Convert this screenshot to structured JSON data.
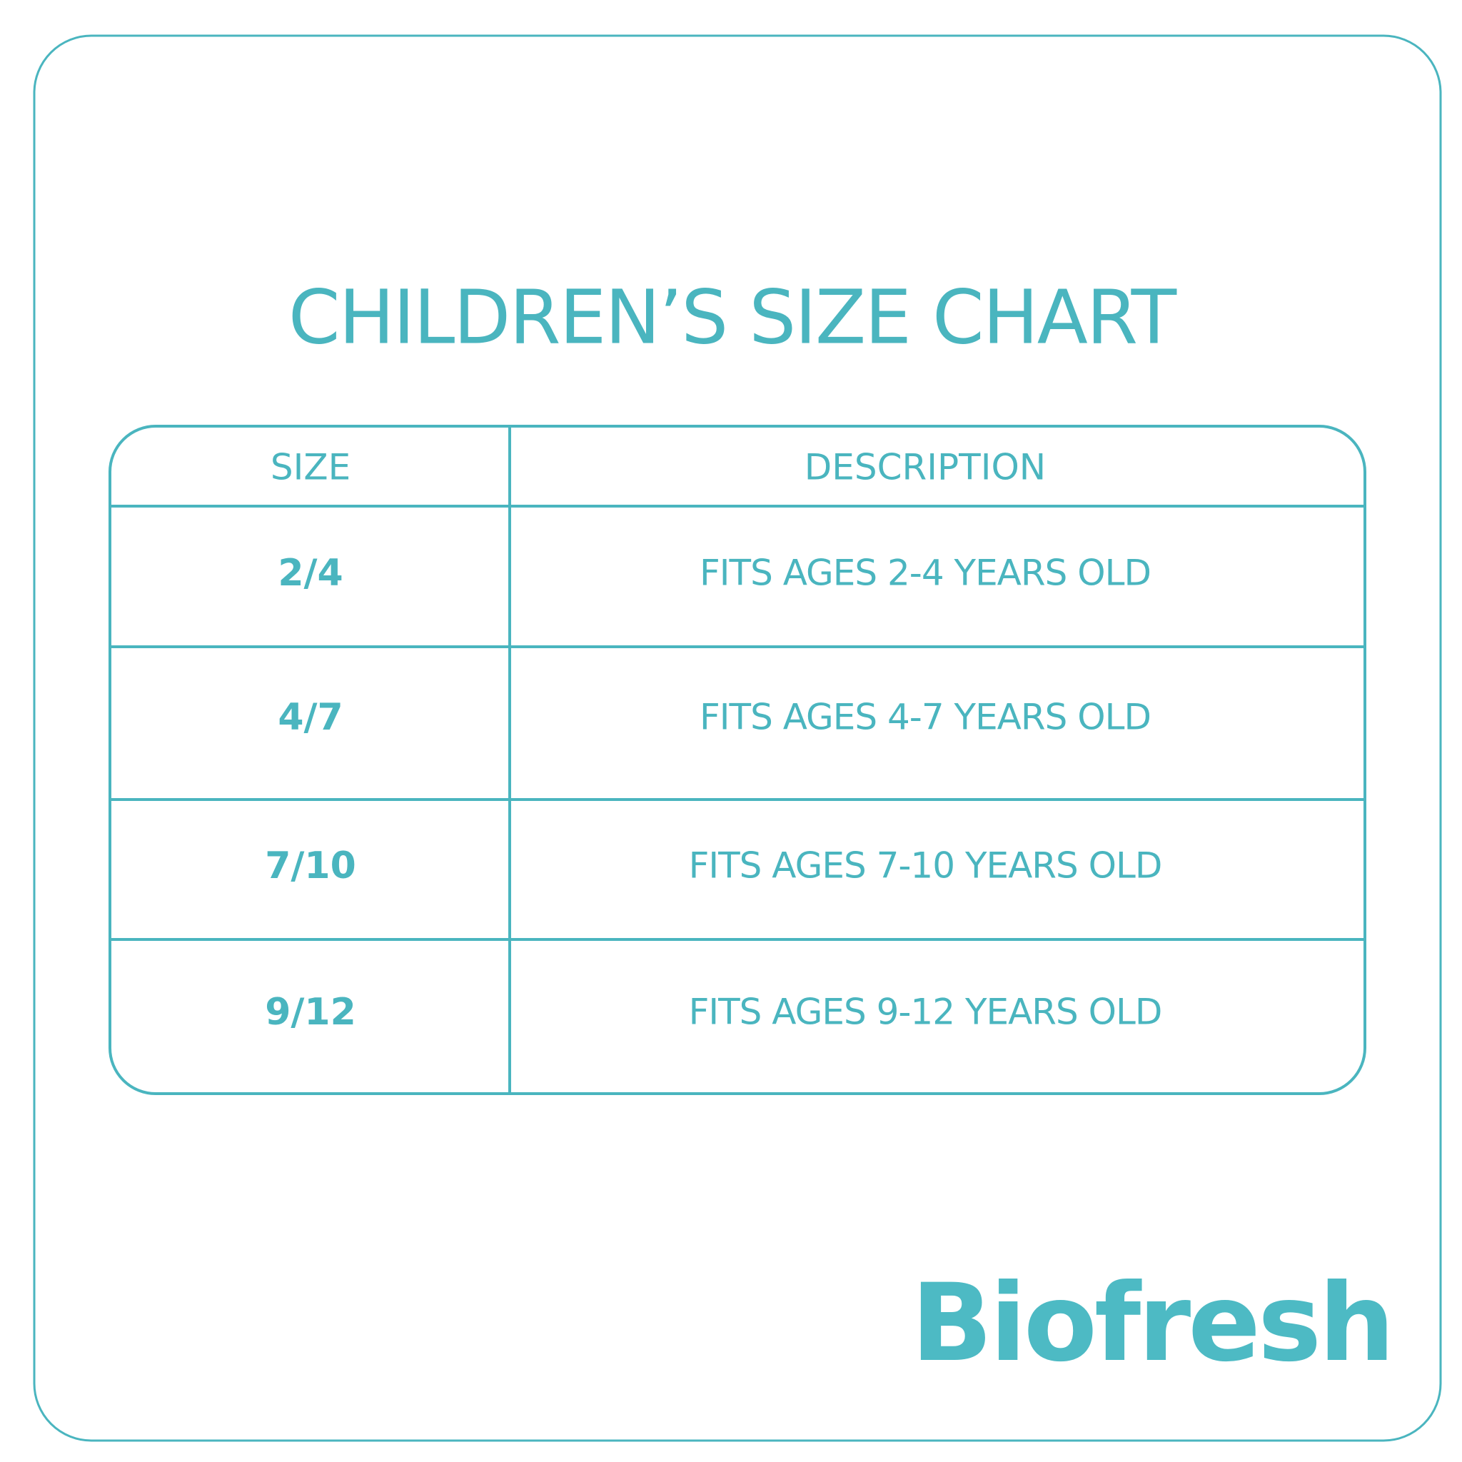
{
  "header": {
    "title": "CHILDREN’S SIZE CHART"
  },
  "table": {
    "columns": [
      "SIZE",
      "DESCRIPTION"
    ],
    "rows": [
      [
        "2/4",
        "FITS AGES 2-4 YEARS OLD"
      ],
      [
        "4/7",
        "FITS AGES 4-7 YEARS OLD"
      ],
      [
        "7/10",
        "FITS AGES 7-10 YEARS OLD"
      ],
      [
        "9/12",
        "FITS AGES 9-12 YEARS OLD"
      ]
    ]
  },
  "footer": {
    "brand": "Biofresh"
  }
}
